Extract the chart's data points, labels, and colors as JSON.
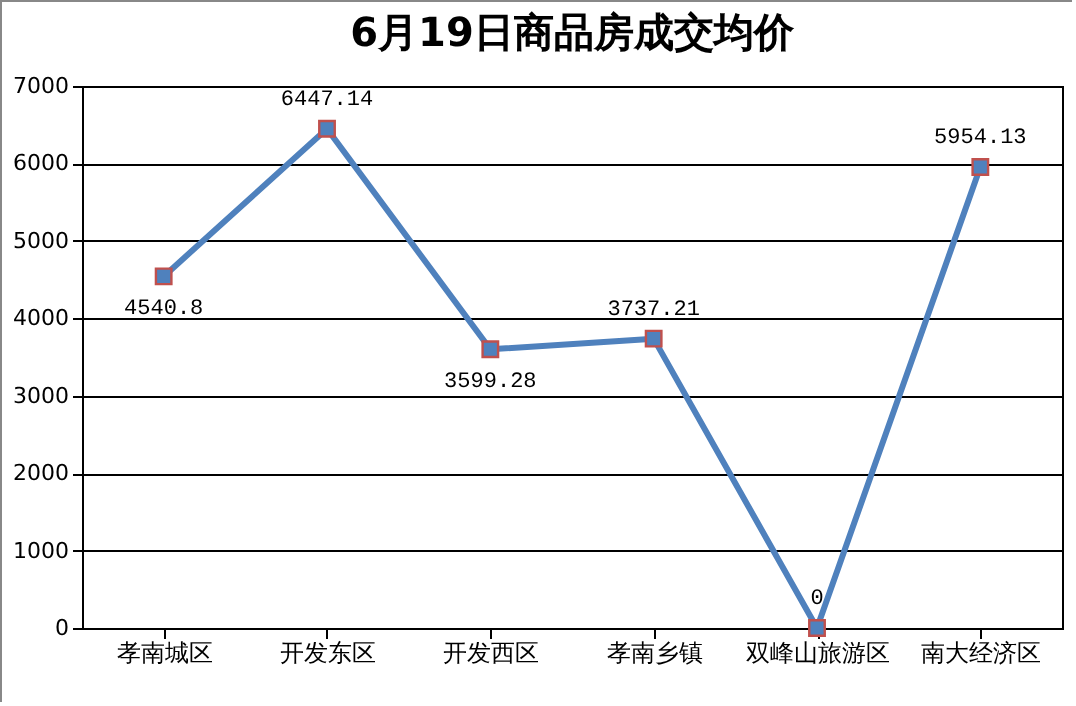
{
  "chart_data": {
    "type": "line",
    "title": "6月19日商品房成交均价",
    "categories": [
      "孝南城区",
      "开发东区",
      "开发西区",
      "孝南乡镇",
      "双峰山旅游区",
      "南大经济区"
    ],
    "series": [
      {
        "color": "#4f81bd",
        "values": [
          4540.8,
          6447.14,
          3599.28,
          3737.21,
          0,
          5954.13
        ]
      }
    ],
    "ylim": [
      0,
      7000
    ],
    "yticks": [
      0,
      1000,
      2000,
      3000,
      4000,
      5000,
      6000,
      7000
    ],
    "grid": "y",
    "marker": "square",
    "line_style": "solid",
    "data_labels": true,
    "legend": false
  }
}
